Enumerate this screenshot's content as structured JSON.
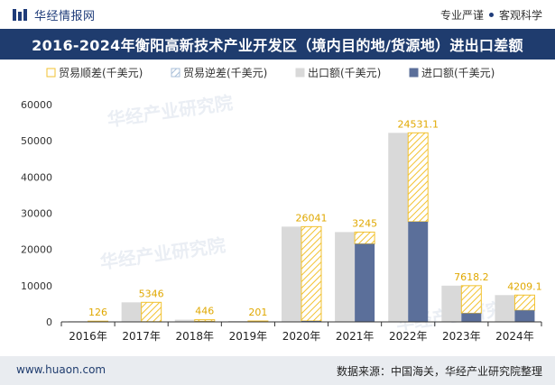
{
  "header": {
    "brand": "华经情报网",
    "tag1": "专业严谨",
    "tag2": "客观科学"
  },
  "title": "2016-2024年衡阳高新技术产业开发区（境内目的地/货源地）进出口差额",
  "footer": {
    "site": "www.huaon.com",
    "source": "数据来源：中国海关，华经产业研究院整理"
  },
  "watermark": "华经产业研究院",
  "colors": {
    "export": "#d9d9d9",
    "import": "#5b6f9a",
    "surplus": "#f2c230",
    "deficit_hatch": "#a9bfd8",
    "title_bg": "#1f3c6e"
  },
  "chart_data": {
    "type": "bar",
    "categories": [
      "2016年",
      "2017年",
      "2018年",
      "2019年",
      "2020年",
      "2021年",
      "2022年",
      "2023年",
      "2024年"
    ],
    "series": [
      {
        "name": "贸易顺差(千美元)",
        "values": [
          126,
          5346,
          446,
          201,
          26041,
          3245,
          24531.1,
          7618.2,
          4209.1
        ]
      },
      {
        "name": "贸易逆差(千美元)",
        "values": [
          0,
          0,
          0,
          0,
          0,
          0,
          0,
          0,
          0
        ]
      },
      {
        "name": "出口额(千美元)",
        "values": [
          200,
          5400,
          600,
          250,
          26300,
          24800,
          52200,
          10000,
          7400
        ]
      },
      {
        "name": "进口额(千美元)",
        "values": [
          74,
          54,
          154,
          49,
          259,
          21555,
          27669,
          2382,
          3191
        ]
      }
    ],
    "data_labels": [
      "126",
      "5346",
      "446",
      "201",
      "26041",
      "3245",
      "24531.1",
      "7618.2",
      "4209.1"
    ],
    "yticks": [
      "0",
      "10000",
      "20000",
      "30000",
      "40000",
      "50000",
      "60000"
    ],
    "ylim": [
      0,
      60000
    ],
    "legend_position": "top",
    "grid": false
  }
}
